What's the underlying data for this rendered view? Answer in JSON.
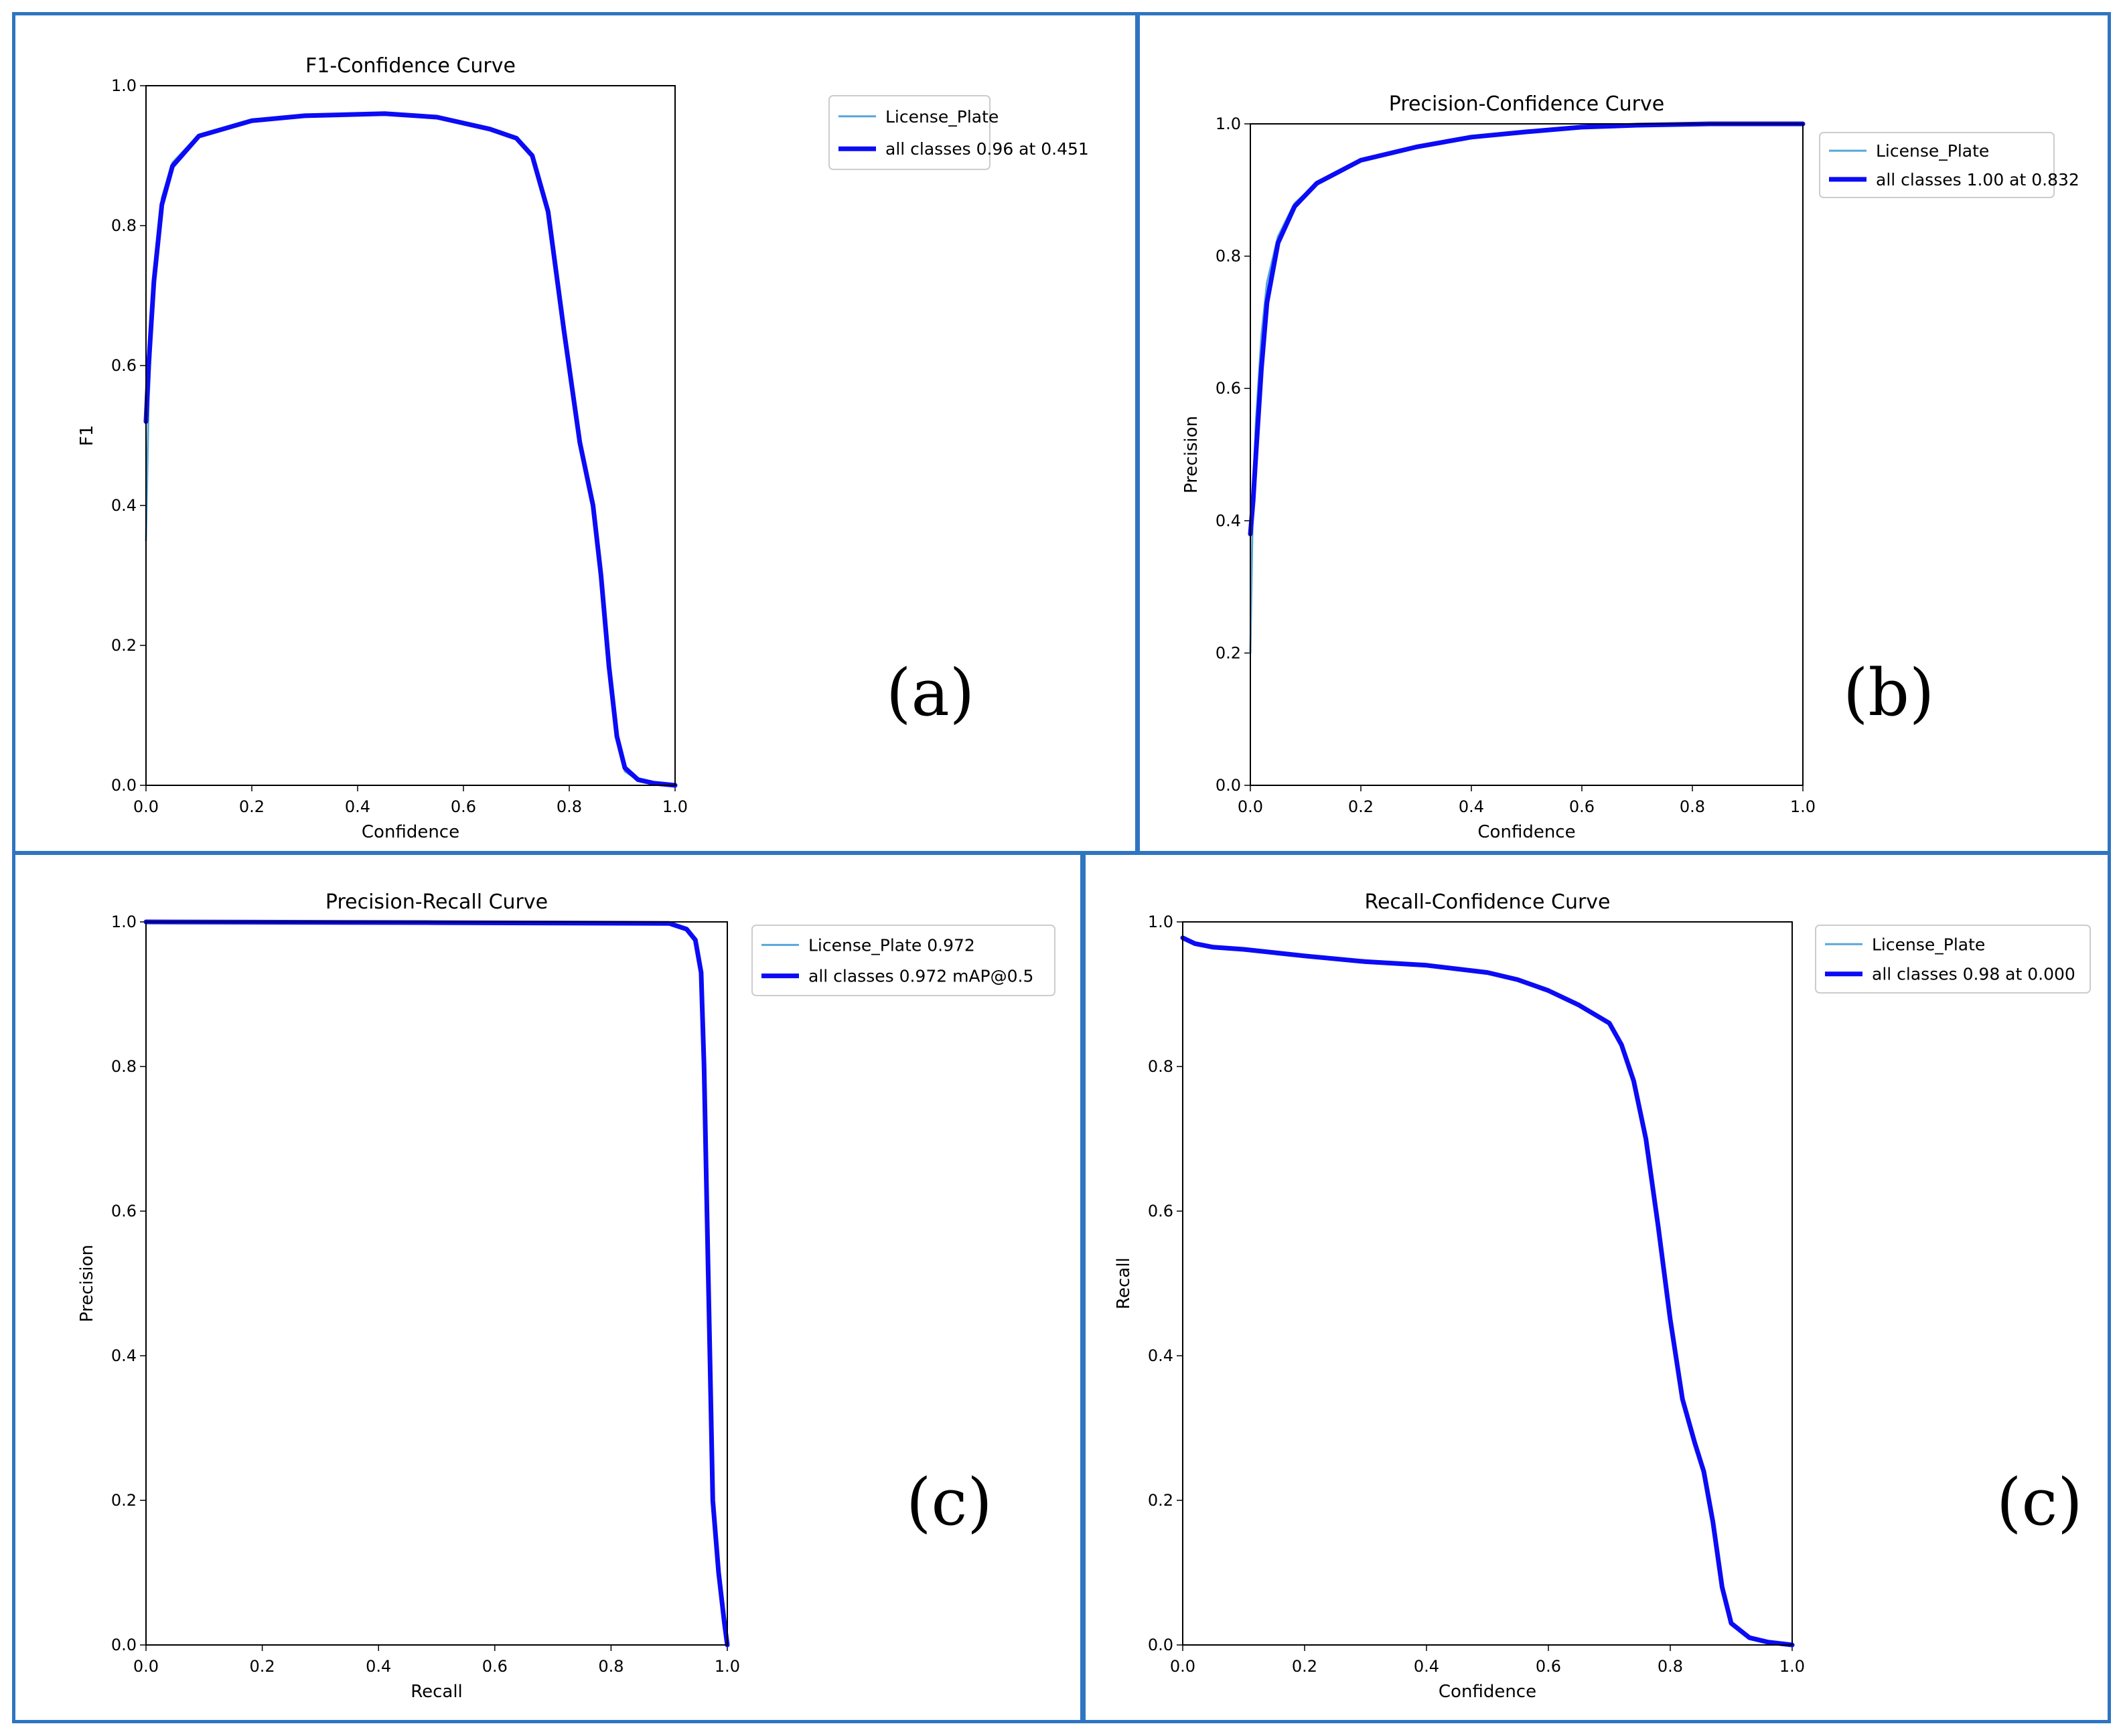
{
  "colors": {
    "frame": "#2f75c1",
    "series_thin": "#56a7d8",
    "series_thick": "#0b0bf5"
  },
  "chart_data": [
    {
      "id": "a",
      "type": "line",
      "title": "F1-Confidence Curve",
      "xlabel": "Confidence",
      "ylabel": "F1",
      "xlim": [
        0,
        1
      ],
      "ylim": [
        0,
        1
      ],
      "xticks": [
        "0.0",
        "0.2",
        "0.4",
        "0.6",
        "0.8",
        "1.0"
      ],
      "yticks": [
        "0.0",
        "0.2",
        "0.4",
        "0.6",
        "0.8",
        "1.0"
      ],
      "panel_label": "(a)",
      "legend": [
        "License_Plate",
        "all classes 0.96 at 0.451"
      ],
      "series": [
        {
          "name": "License_Plate",
          "style": "thin",
          "points": [
            [
              0,
              0.35
            ],
            [
              0.005,
              0.55
            ],
            [
              0.015,
              0.72
            ],
            [
              0.03,
              0.84
            ],
            [
              0.05,
              0.89
            ],
            [
              0.1,
              0.93
            ],
            [
              0.2,
              0.952
            ],
            [
              0.3,
              0.957
            ],
            [
              0.451,
              0.96
            ],
            [
              0.55,
              0.955
            ],
            [
              0.65,
              0.938
            ],
            [
              0.7,
              0.925
            ],
            [
              0.73,
              0.9
            ],
            [
              0.76,
              0.82
            ],
            [
              0.79,
              0.65
            ],
            [
              0.82,
              0.49
            ],
            [
              0.845,
              0.4
            ],
            [
              0.86,
              0.3
            ],
            [
              0.875,
              0.18
            ],
            [
              0.89,
              0.07
            ],
            [
              0.905,
              0.02
            ],
            [
              0.93,
              0.007
            ],
            [
              0.96,
              0.003
            ],
            [
              1.0,
              0.0
            ]
          ]
        },
        {
          "name": "all classes 0.96 at 0.451",
          "style": "thick",
          "points": [
            [
              0,
              0.52
            ],
            [
              0.005,
              0.6
            ],
            [
              0.015,
              0.72
            ],
            [
              0.03,
              0.83
            ],
            [
              0.05,
              0.885
            ],
            [
              0.1,
              0.928
            ],
            [
              0.2,
              0.95
            ],
            [
              0.3,
              0.957
            ],
            [
              0.451,
              0.96
            ],
            [
              0.55,
              0.955
            ],
            [
              0.65,
              0.938
            ],
            [
              0.7,
              0.925
            ],
            [
              0.73,
              0.9
            ],
            [
              0.76,
              0.82
            ],
            [
              0.79,
              0.65
            ],
            [
              0.82,
              0.49
            ],
            [
              0.845,
              0.4
            ],
            [
              0.86,
              0.3
            ],
            [
              0.875,
              0.17
            ],
            [
              0.89,
              0.07
            ],
            [
              0.905,
              0.025
            ],
            [
              0.93,
              0.008
            ],
            [
              0.96,
              0.003
            ],
            [
              1.0,
              0.0
            ]
          ]
        }
      ]
    },
    {
      "id": "b",
      "type": "line",
      "title": "Precision-Confidence Curve",
      "xlabel": "Confidence",
      "ylabel": "Precision",
      "xlim": [
        0,
        1
      ],
      "ylim": [
        0,
        1
      ],
      "xticks": [
        "0.0",
        "0.2",
        "0.4",
        "0.6",
        "0.8",
        "1.0"
      ],
      "yticks": [
        "0.0",
        "0.2",
        "0.4",
        "0.6",
        "0.8",
        "1.0"
      ],
      "panel_label": "(b)",
      "legend": [
        "License_Plate",
        "all classes 1.00 at 0.832"
      ],
      "series": [
        {
          "name": "License_Plate",
          "style": "thin",
          "points": [
            [
              0,
              0.2
            ],
            [
              0.005,
              0.45
            ],
            [
              0.01,
              0.55
            ],
            [
              0.02,
              0.68
            ],
            [
              0.03,
              0.76
            ],
            [
              0.05,
              0.83
            ],
            [
              0.08,
              0.88
            ],
            [
              0.12,
              0.91
            ],
            [
              0.2,
              0.945
            ],
            [
              0.3,
              0.965
            ],
            [
              0.4,
              0.98
            ],
            [
              0.5,
              0.988
            ],
            [
              0.6,
              0.995
            ],
            [
              0.7,
              0.998
            ],
            [
              0.832,
              1.0
            ],
            [
              1.0,
              1.0
            ]
          ]
        },
        {
          "name": "all classes 1.00 at 0.832",
          "style": "thick",
          "points": [
            [
              0,
              0.38
            ],
            [
              0.005,
              0.43
            ],
            [
              0.01,
              0.5
            ],
            [
              0.02,
              0.63
            ],
            [
              0.03,
              0.73
            ],
            [
              0.05,
              0.82
            ],
            [
              0.08,
              0.875
            ],
            [
              0.12,
              0.91
            ],
            [
              0.2,
              0.945
            ],
            [
              0.3,
              0.965
            ],
            [
              0.4,
              0.98
            ],
            [
              0.5,
              0.988
            ],
            [
              0.6,
              0.995
            ],
            [
              0.7,
              0.998
            ],
            [
              0.832,
              1.0
            ],
            [
              1.0,
              1.0
            ]
          ]
        }
      ]
    },
    {
      "id": "c1",
      "type": "line",
      "title": "Precision-Recall Curve",
      "xlabel": "Recall",
      "ylabel": "Precision",
      "xlim": [
        0,
        1
      ],
      "ylim": [
        0,
        1
      ],
      "xticks": [
        "0.0",
        "0.2",
        "0.4",
        "0.6",
        "0.8",
        "1.0"
      ],
      "yticks": [
        "0.0",
        "0.2",
        "0.4",
        "0.6",
        "0.8",
        "1.0"
      ],
      "panel_label": "(c)",
      "legend": [
        "License_Plate 0.972",
        "all classes 0.972 mAP@0.5"
      ],
      "series": [
        {
          "name": "License_Plate 0.972",
          "style": "thin",
          "points": [
            [
              0,
              1.0
            ],
            [
              0.5,
              0.999
            ],
            [
              0.9,
              0.998
            ],
            [
              0.93,
              0.99
            ],
            [
              0.945,
              0.975
            ],
            [
              0.955,
              0.93
            ],
            [
              0.96,
              0.8
            ],
            [
              0.965,
              0.6
            ],
            [
              0.97,
              0.4
            ],
            [
              0.975,
              0.2
            ],
            [
              0.985,
              0.1
            ],
            [
              0.995,
              0.03
            ],
            [
              1.0,
              0.0
            ]
          ]
        },
        {
          "name": "all classes 0.972 mAP@0.5",
          "style": "thick",
          "points": [
            [
              0,
              1.0
            ],
            [
              0.5,
              0.999
            ],
            [
              0.9,
              0.998
            ],
            [
              0.93,
              0.99
            ],
            [
              0.945,
              0.975
            ],
            [
              0.955,
              0.93
            ],
            [
              0.96,
              0.8
            ],
            [
              0.965,
              0.6
            ],
            [
              0.97,
              0.4
            ],
            [
              0.975,
              0.2
            ],
            [
              0.985,
              0.1
            ],
            [
              0.995,
              0.03
            ],
            [
              1.0,
              0.0
            ]
          ]
        }
      ]
    },
    {
      "id": "c2",
      "type": "line",
      "title": "Recall-Confidence Curve",
      "xlabel": "Confidence",
      "ylabel": "Recall",
      "xlim": [
        0,
        1
      ],
      "ylim": [
        0,
        1
      ],
      "xticks": [
        "0.0",
        "0.2",
        "0.4",
        "0.6",
        "0.8",
        "1.0"
      ],
      "yticks": [
        "0.0",
        "0.2",
        "0.4",
        "0.6",
        "0.8",
        "1.0"
      ],
      "panel_label": "(c)",
      "legend": [
        "License_Plate",
        "all classes 0.98 at 0.000"
      ],
      "series": [
        {
          "name": "License_Plate",
          "style": "thin",
          "points": [
            [
              0,
              0.98
            ],
            [
              0.02,
              0.97
            ],
            [
              0.05,
              0.965
            ],
            [
              0.1,
              0.962
            ],
            [
              0.2,
              0.953
            ],
            [
              0.3,
              0.945
            ],
            [
              0.4,
              0.94
            ],
            [
              0.5,
              0.93
            ],
            [
              0.55,
              0.92
            ],
            [
              0.6,
              0.905
            ],
            [
              0.65,
              0.885
            ],
            [
              0.7,
              0.86
            ],
            [
              0.72,
              0.83
            ],
            [
              0.74,
              0.78
            ],
            [
              0.76,
              0.7
            ],
            [
              0.78,
              0.58
            ],
            [
              0.8,
              0.45
            ],
            [
              0.82,
              0.34
            ],
            [
              0.84,
              0.28
            ],
            [
              0.855,
              0.24
            ],
            [
              0.87,
              0.17
            ],
            [
              0.885,
              0.08
            ],
            [
              0.9,
              0.03
            ],
            [
              0.93,
              0.01
            ],
            [
              0.96,
              0.004
            ],
            [
              1.0,
              0.0
            ]
          ]
        },
        {
          "name": "all classes 0.98 at 0.000",
          "style": "thick",
          "points": [
            [
              0,
              0.978
            ],
            [
              0.02,
              0.97
            ],
            [
              0.05,
              0.965
            ],
            [
              0.1,
              0.962
            ],
            [
              0.2,
              0.953
            ],
            [
              0.3,
              0.945
            ],
            [
              0.4,
              0.94
            ],
            [
              0.5,
              0.93
            ],
            [
              0.55,
              0.92
            ],
            [
              0.6,
              0.905
            ],
            [
              0.65,
              0.885
            ],
            [
              0.7,
              0.86
            ],
            [
              0.72,
              0.83
            ],
            [
              0.74,
              0.78
            ],
            [
              0.76,
              0.7
            ],
            [
              0.78,
              0.58
            ],
            [
              0.8,
              0.45
            ],
            [
              0.82,
              0.34
            ],
            [
              0.84,
              0.28
            ],
            [
              0.855,
              0.24
            ],
            [
              0.87,
              0.17
            ],
            [
              0.885,
              0.08
            ],
            [
              0.9,
              0.03
            ],
            [
              0.93,
              0.01
            ],
            [
              0.96,
              0.004
            ],
            [
              1.0,
              0.0
            ]
          ]
        }
      ]
    }
  ]
}
